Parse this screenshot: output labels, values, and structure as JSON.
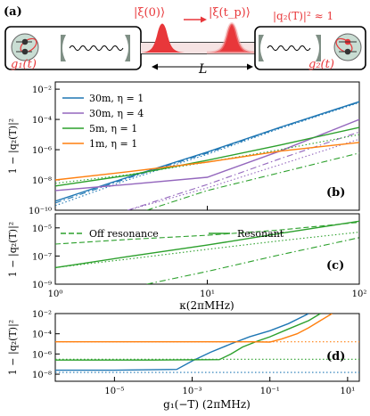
{
  "panel_a": {
    "label": "(a)",
    "state_left": "|ξ(0)⟩",
    "state_right": "|ξ(t_p)⟩",
    "fidelity": "|q₂(T)|² ≈ 1",
    "coupling_left": "g₁(t)",
    "coupling_right": "g₂(t)",
    "distance": "L",
    "colors": {
      "pulse": "#e8373a",
      "fidelity": "#e8373a",
      "cavity": "#c9ddd3"
    }
  },
  "chart_data": [
    {
      "type": "line",
      "panel": "(b)",
      "ylabel": "1 − |q₂(T)|²",
      "xscale": "log",
      "yscale": "log",
      "xlim": [
        1,
        100
      ],
      "ylim": [
        1e-10,
        0.03
      ],
      "yticks": [
        "10⁻¹⁰",
        "10⁻⁸",
        "10⁻⁶",
        "10⁻⁴",
        "10⁻²"
      ],
      "legend_position": "top-left",
      "series": [
        {
          "name": "30m, η = 1",
          "color": "#1f77b4",
          "solid": [
            [
              1,
              4e-10
            ],
            [
              3,
              1.5e-08
            ],
            [
              10,
              7e-07
            ],
            [
              30,
              3e-05
            ],
            [
              100,
              0.0015
            ]
          ],
          "dashdot": [
            [
              1,
              3e-10
            ],
            [
              3,
              1.3e-08
            ],
            [
              10,
              6e-07
            ],
            [
              30,
              2.8e-05
            ],
            [
              100,
              0.0014
            ]
          ],
          "dotted": [
            [
              1,
              2e-10
            ],
            [
              3,
              1e-08
            ],
            [
              10,
              5e-07
            ],
            [
              30,
              2.5e-05
            ],
            [
              100,
              0.0013
            ]
          ]
        },
        {
          "name": "30m, η = 4",
          "color": "#9467bd",
          "solid": [
            [
              1,
              2e-09
            ],
            [
              3,
              5e-09
            ],
            [
              10,
              1.5e-08
            ],
            [
              30,
              8e-07
            ],
            [
              100,
              0.0001
            ]
          ],
          "dashdot": [
            [
              3,
              1e-10
            ],
            [
              10,
              5e-09
            ],
            [
              30,
              2.5e-07
            ],
            [
              100,
              1.5e-05
            ]
          ],
          "dotted": [
            [
              3,
              1e-10
            ],
            [
              10,
              3e-09
            ],
            [
              30,
              1e-07
            ],
            [
              100,
              5e-06
            ]
          ]
        },
        {
          "name": "5m, η = 1",
          "color": "#2ca02c",
          "solid": [
            [
              1,
              4e-09
            ],
            [
              3,
              2e-08
            ],
            [
              10,
              2e-07
            ],
            [
              30,
              2e-06
            ],
            [
              100,
              3e-05
            ]
          ],
          "dashdot": [
            [
              4,
              1e-10
            ],
            [
              10,
              2e-09
            ],
            [
              30,
              3e-08
            ],
            [
              100,
              6e-07
            ]
          ],
          "dotted": [
            [
              1,
              6e-09
            ],
            [
              3,
              2.2e-08
            ],
            [
              10,
              1.5e-07
            ],
            [
              30,
              1e-06
            ],
            [
              100,
              1e-05
            ]
          ]
        },
        {
          "name": "1m, η = 1",
          "color": "#ff7f0e",
          "solid": [
            [
              1,
              1e-08
            ],
            [
              3,
              3.5e-08
            ],
            [
              10,
              1.5e-07
            ],
            [
              30,
              8e-07
            ],
            [
              100,
              3e-06
            ]
          ],
          "dashdot": [],
          "dotted": []
        }
      ]
    },
    {
      "type": "line",
      "panel": "(c)",
      "ylabel": "1 − |q₂(T)|²",
      "xlabel": "κ(2πMHz)",
      "xscale": "log",
      "yscale": "log",
      "xlim": [
        1,
        100
      ],
      "ylim": [
        1e-09,
        0.0001
      ],
      "yticks": [
        "10⁻⁹",
        "10⁻⁷",
        "10⁻⁵"
      ],
      "xticks": [
        "10⁰",
        "10¹",
        "10²"
      ],
      "legend_position": "top",
      "series": [
        {
          "name": "Off resonance",
          "color": "#2ca02c",
          "style": "dashed",
          "points": [
            [
              1,
              7e-07
            ],
            [
              3,
              1.5e-06
            ],
            [
              10,
              3e-06
            ],
            [
              30,
              7e-06
            ],
            [
              100,
              2.5e-05
            ]
          ]
        },
        {
          "name": "Resonant",
          "color": "#2ca02c",
          "style": "solid",
          "points": [
            [
              1,
              1.5e-08
            ],
            [
              3,
              9e-08
            ],
            [
              10,
              6e-07
            ],
            [
              30,
              4e-06
            ],
            [
              100,
              3e-05
            ]
          ]
        },
        {
          "name": "",
          "color": "#2ca02c",
          "style": "dotted",
          "points": [
            [
              1,
              1.5e-08
            ],
            [
              3,
              6e-08
            ],
            [
              10,
              3e-07
            ],
            [
              30,
              1.2e-06
            ],
            [
              100,
              5e-06
            ]
          ]
        },
        {
          "name": "",
          "color": "#2ca02c",
          "style": "dashdot",
          "points": [
            [
              4,
              1e-09
            ],
            [
              10,
              8e-09
            ],
            [
              30,
              1.2e-07
            ],
            [
              100,
              2e-06
            ]
          ]
        }
      ]
    },
    {
      "type": "line",
      "panel": "(d)",
      "ylabel": "1 − |q₂(T)|²",
      "xlabel": "g₁(−T) (2πMHz)",
      "xscale": "log",
      "yscale": "log",
      "xlim": [
        3e-07,
        20
      ],
      "ylim": [
        2e-09,
        0.01
      ],
      "yticks": [
        "10⁻⁸",
        "10⁻⁶",
        "10⁻⁴",
        "10⁻²"
      ],
      "xticks": [
        "10⁻⁵",
        "10⁻³",
        "10⁻¹",
        "10¹"
      ],
      "series": [
        {
          "name": "30m, η = 1",
          "color": "#1f77b4",
          "solid": [
            [
              3e-07,
              2.5e-08
            ],
            [
              1e-05,
              2.5e-08
            ],
            [
              0.0004,
              3e-08
            ],
            [
              0.001,
              2e-07
            ],
            [
              0.003,
              1.5e-06
            ],
            [
              0.01,
              1e-05
            ],
            [
              0.03,
              5e-05
            ],
            [
              0.1,
              0.0002
            ],
            [
              0.3,
              0.001
            ],
            [
              1,
              0.01
            ]
          ],
          "dotted_level": 1.5e-08
        },
        {
          "name": "5m, η = 1",
          "color": "#2ca02c",
          "solid": [
            [
              3e-07,
              2.5e-07
            ],
            [
              0.0001,
              2.5e-07
            ],
            [
              0.005,
              2.8e-07
            ],
            [
              0.01,
              1e-06
            ],
            [
              0.02,
              5e-06
            ],
            [
              0.05,
              2e-05
            ],
            [
              0.1,
              5e-05
            ],
            [
              0.3,
              0.0003
            ],
            [
              1,
              0.002
            ],
            [
              2,
              0.01
            ]
          ],
          "dotted_level": 3e-07
        },
        {
          "name": "1m, η = 1",
          "color": "#ff7f0e",
          "solid": [
            [
              3e-07,
              1.6e-05
            ],
            [
              0.03,
              1.6e-05
            ],
            [
              0.1,
              1.5e-05
            ],
            [
              0.2,
              3e-05
            ],
            [
              0.5,
              0.0001
            ],
            [
              1,
              0.0004
            ],
            [
              2,
              0.002
            ],
            [
              4,
              0.01
            ]
          ],
          "dotted_level": 1.6e-05
        }
      ]
    }
  ]
}
